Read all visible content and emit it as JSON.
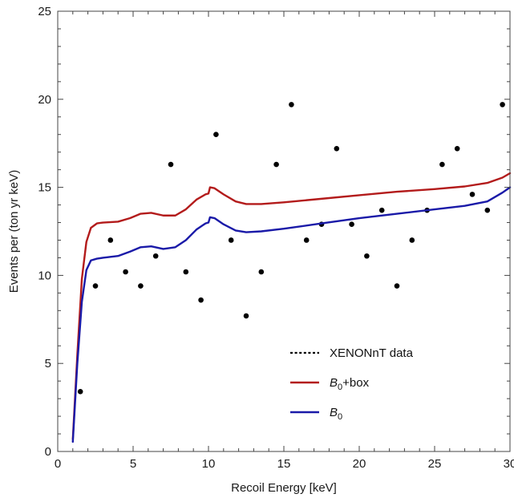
{
  "chart_data": {
    "type": "line",
    "title": "",
    "xlabel": "Recoil Energy [keV]",
    "ylabel": "Events per (ton yr keV)",
    "xlim": [
      0,
      30
    ],
    "ylim": [
      0,
      25
    ],
    "x_ticks": [
      0,
      5,
      10,
      15,
      20,
      25,
      30
    ],
    "y_ticks": [
      0,
      5,
      10,
      15,
      20,
      25
    ],
    "grid": false,
    "legend_position": "bottom-right",
    "legend": {
      "data_label": "XENONnT data",
      "box_label_main": "B",
      "box_label_sub": "0",
      "box_label_suffix": "+box",
      "b0_label_main": "B",
      "b0_label_sub": "0"
    },
    "series": [
      {
        "name_key": "XENONnT data",
        "style": "dotted",
        "color": "#000000",
        "points": [
          [
            1.5,
            3.4
          ],
          [
            2.5,
            9.4
          ],
          [
            3.5,
            12.0
          ],
          [
            4.5,
            10.2
          ],
          [
            5.5,
            9.4
          ],
          [
            6.5,
            11.1
          ],
          [
            7.5,
            16.3
          ],
          [
            8.5,
            10.2
          ],
          [
            9.5,
            8.6
          ],
          [
            10.5,
            18.0
          ],
          [
            11.5,
            12.0
          ],
          [
            12.5,
            7.7
          ],
          [
            13.5,
            10.2
          ],
          [
            14.5,
            16.3
          ],
          [
            15.5,
            19.7
          ],
          [
            16.5,
            12.0
          ],
          [
            17.5,
            12.9
          ],
          [
            18.5,
            17.2
          ],
          [
            19.5,
            12.9
          ],
          [
            20.5,
            11.1
          ],
          [
            21.5,
            13.7
          ],
          [
            22.5,
            9.4
          ],
          [
            23.5,
            12.0
          ],
          [
            24.5,
            13.7
          ],
          [
            25.5,
            16.3
          ],
          [
            26.5,
            17.2
          ],
          [
            27.5,
            14.6
          ],
          [
            28.5,
            13.7
          ],
          [
            29.5,
            19.7
          ]
        ]
      },
      {
        "name_key": "B0+box",
        "style": "line",
        "color": "#b31b1b",
        "points": [
          [
            1.0,
            0.7
          ],
          [
            1.3,
            5.5
          ],
          [
            1.6,
            9.8
          ],
          [
            1.9,
            11.9
          ],
          [
            2.2,
            12.7
          ],
          [
            2.6,
            12.95
          ],
          [
            3.0,
            13.0
          ],
          [
            4.0,
            13.05
          ],
          [
            4.8,
            13.25
          ],
          [
            5.5,
            13.5
          ],
          [
            6.2,
            13.55
          ],
          [
            7.0,
            13.4
          ],
          [
            7.8,
            13.4
          ],
          [
            8.5,
            13.75
          ],
          [
            9.2,
            14.3
          ],
          [
            9.8,
            14.6
          ],
          [
            10.0,
            14.65
          ],
          [
            10.1,
            15.0
          ],
          [
            10.4,
            14.95
          ],
          [
            11.0,
            14.6
          ],
          [
            11.8,
            14.2
          ],
          [
            12.5,
            14.05
          ],
          [
            13.5,
            14.05
          ],
          [
            15.0,
            14.15
          ],
          [
            17.5,
            14.35
          ],
          [
            20.0,
            14.55
          ],
          [
            22.5,
            14.75
          ],
          [
            25.0,
            14.9
          ],
          [
            27.0,
            15.05
          ],
          [
            28.5,
            15.25
          ],
          [
            29.5,
            15.55
          ],
          [
            30.0,
            15.8
          ]
        ]
      },
      {
        "name_key": "B0",
        "style": "line",
        "color": "#1a1aa8",
        "points": [
          [
            1.0,
            0.55
          ],
          [
            1.3,
            5.0
          ],
          [
            1.6,
            8.5
          ],
          [
            1.9,
            10.3
          ],
          [
            2.2,
            10.85
          ],
          [
            2.6,
            10.95
          ],
          [
            3.0,
            11.0
          ],
          [
            4.0,
            11.1
          ],
          [
            4.8,
            11.35
          ],
          [
            5.5,
            11.6
          ],
          [
            6.2,
            11.65
          ],
          [
            7.0,
            11.5
          ],
          [
            7.8,
            11.6
          ],
          [
            8.5,
            12.0
          ],
          [
            9.2,
            12.6
          ],
          [
            9.8,
            12.95
          ],
          [
            10.0,
            13.0
          ],
          [
            10.1,
            13.3
          ],
          [
            10.4,
            13.25
          ],
          [
            11.0,
            12.9
          ],
          [
            11.8,
            12.55
          ],
          [
            12.5,
            12.45
          ],
          [
            13.5,
            12.5
          ],
          [
            15.0,
            12.65
          ],
          [
            17.5,
            12.95
          ],
          [
            20.0,
            13.25
          ],
          [
            22.5,
            13.5
          ],
          [
            25.0,
            13.75
          ],
          [
            27.0,
            13.95
          ],
          [
            28.5,
            14.2
          ],
          [
            29.5,
            14.7
          ],
          [
            30.0,
            15.0
          ]
        ]
      }
    ]
  }
}
